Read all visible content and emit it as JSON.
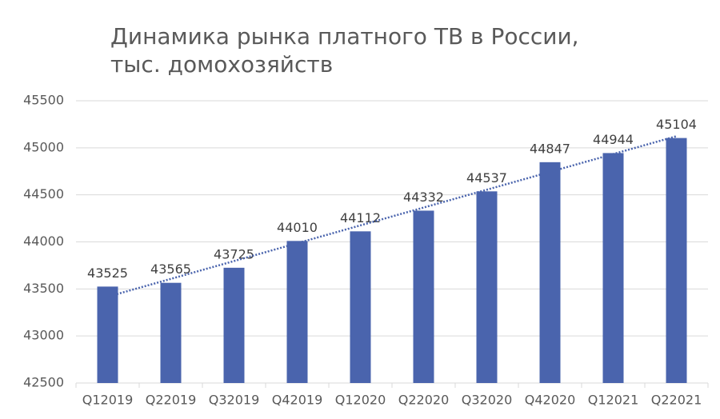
{
  "chart_data": {
    "type": "bar",
    "title": [
      "Динамика рынка платного ТВ в России,",
      "тыс. домохозяйств"
    ],
    "categories": [
      "Q12019",
      "Q22019",
      "Q32019",
      "Q42019",
      "Q12020",
      "Q22020",
      "Q32020",
      "Q42020",
      "Q12021",
      "Q22021"
    ],
    "values": [
      43525,
      43565,
      43725,
      44010,
      44112,
      44332,
      44537,
      44847,
      44944,
      45104
    ],
    "color": "#4a64ad",
    "ylim": [
      42500,
      45500
    ],
    "yticks": [
      42500,
      43000,
      43500,
      44000,
      44500,
      45000,
      45500
    ],
    "grid": true,
    "trendline": true
  }
}
